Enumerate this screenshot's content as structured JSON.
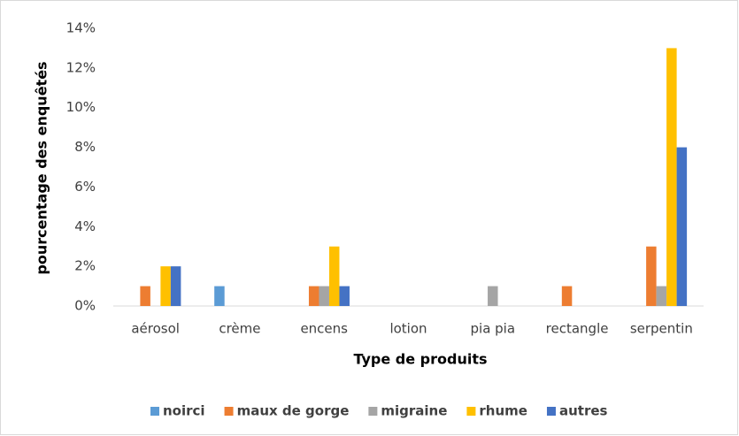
{
  "chart_data": {
    "type": "bar",
    "x_label": "Type de produits",
    "y_label": "pourcentage des enquêtés",
    "categories": [
      "aérosol",
      "crème",
      "encens",
      "lotion",
      "pia pia",
      "rectangle",
      "serpentin"
    ],
    "series": [
      {
        "name": "noirci",
        "color": "#5b9bd5",
        "values": [
          0,
          1,
          0,
          0,
          0,
          0,
          0
        ]
      },
      {
        "name": "maux de gorge",
        "color": "#ed7d31",
        "values": [
          1,
          0,
          1,
          0,
          0,
          1,
          3
        ]
      },
      {
        "name": "migraine",
        "color": "#a5a5a5",
        "values": [
          0,
          0,
          1,
          0,
          1,
          0,
          1
        ]
      },
      {
        "name": "rhume",
        "color": "#ffc000",
        "values": [
          2,
          0,
          3,
          0,
          0,
          0,
          13
        ]
      },
      {
        "name": "autres",
        "color": "#4472c4",
        "values": [
          2,
          0,
          1,
          0,
          0,
          0,
          8
        ]
      }
    ],
    "ylim": [
      0,
      14
    ],
    "yticks": [
      {
        "value": 0,
        "label": "0%"
      },
      {
        "value": 2,
        "label": "2%"
      },
      {
        "value": 4,
        "label": "4%"
      },
      {
        "value": 6,
        "label": "6%"
      },
      {
        "value": 8,
        "label": "8%"
      },
      {
        "value": 10,
        "label": "10%"
      },
      {
        "value": 12,
        "label": "12%"
      },
      {
        "value": 14,
        "label": "14%"
      }
    ],
    "grid": false,
    "legend": "bottom"
  }
}
